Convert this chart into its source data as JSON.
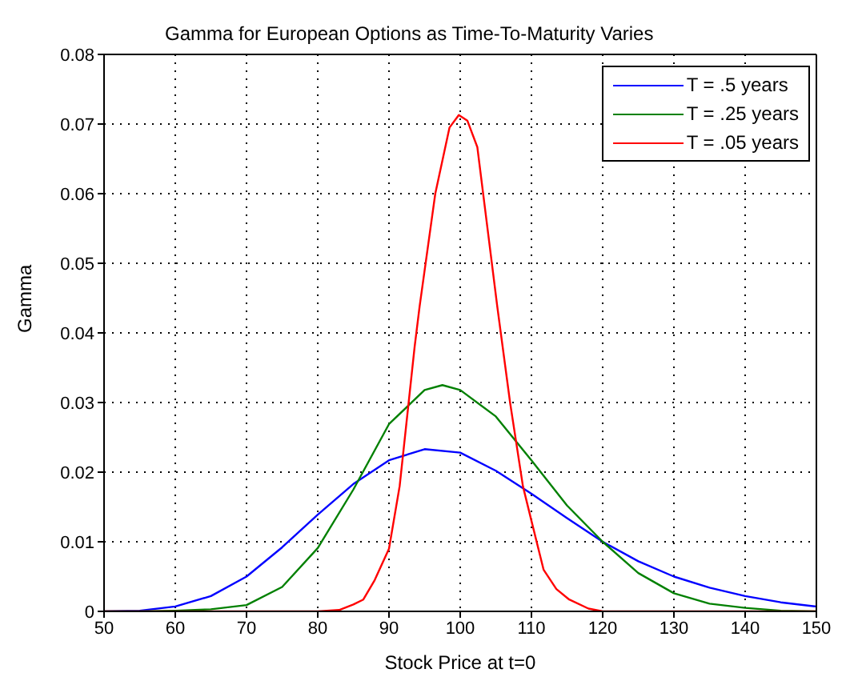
{
  "chart_data": {
    "type": "line",
    "title": "Gamma for European Options as Time-To-Maturity Varies",
    "xlabel": "Stock Price at t=0",
    "ylabel": "Gamma",
    "xlim": [
      50,
      150
    ],
    "xticks": [
      50,
      60,
      70,
      80,
      90,
      100,
      110,
      120,
      130,
      140,
      150
    ],
    "ylim": [
      0,
      0.08
    ],
    "yticks": [
      0,
      0.01,
      0.02,
      0.03,
      0.04,
      0.05,
      0.06,
      0.07,
      0.08
    ],
    "grid": true,
    "legend": "top right",
    "line_style": "solid",
    "marker": "none",
    "series": [
      {
        "name": "T = .5 years",
        "color": "#0000ff",
        "x": [
          50,
          55,
          60,
          65,
          70,
          75,
          80,
          85,
          90,
          95,
          100,
          105,
          110,
          115,
          120,
          125,
          130,
          135,
          140,
          145,
          150
        ],
        "values": [
          0,
          0.0001,
          0.0007,
          0.0022,
          0.005,
          0.0092,
          0.0139,
          0.0183,
          0.0217,
          0.0233,
          0.0228,
          0.0202,
          0.0169,
          0.0134,
          0.01,
          0.0072,
          0.005,
          0.0034,
          0.0022,
          0.0013,
          0.0007
        ]
      },
      {
        "name": "T = .25 years",
        "color": "#008000",
        "x": [
          50,
          55,
          60,
          65,
          70,
          75,
          80,
          85,
          90,
          95,
          97.5,
          100,
          105,
          110,
          115,
          120,
          125,
          130,
          135,
          140,
          145,
          150
        ],
        "values": [
          0,
          0,
          0.0001,
          0.0003,
          0.0009,
          0.0035,
          0.0091,
          0.0175,
          0.0269,
          0.0318,
          0.0325,
          0.0318,
          0.028,
          0.0217,
          0.0152,
          0.01,
          0.0055,
          0.0026,
          0.0011,
          0.0005,
          0.0001,
          0
        ]
      },
      {
        "name": "T = .05 years",
        "color": "#ff0000",
        "x": [
          50,
          80,
          83,
          85,
          86.4,
          88,
          90,
          91.5,
          93.6,
          94.3,
          96.5,
          98.5,
          99.8,
          101,
          102.4,
          105.2,
          107,
          108.8,
          110,
          111.7,
          113.5,
          115.3,
          118,
          120,
          150
        ],
        "values": [
          0,
          0,
          0.0002,
          0.001,
          0.0017,
          0.0045,
          0.009,
          0.018,
          0.038,
          0.0438,
          0.06,
          0.0695,
          0.0713,
          0.0705,
          0.0667,
          0.0438,
          0.03,
          0.018,
          0.013,
          0.006,
          0.0032,
          0.0017,
          0.0004,
          0,
          0
        ]
      }
    ]
  }
}
